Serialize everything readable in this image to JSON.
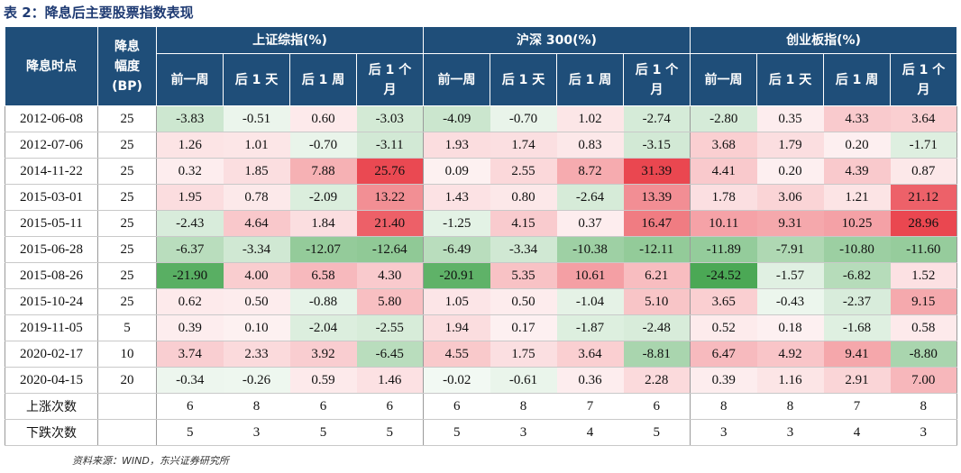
{
  "title": "表 2：降息后主要股票指数表现",
  "header": {
    "date_col": "降息时点",
    "bp_col": [
      "降息",
      "幅度",
      "(BP)"
    ],
    "groups": [
      "上证综指(%)",
      "沪深 300(%)",
      "创业板指(%)"
    ],
    "sub": [
      "前一周",
      "后 1 天",
      "后 1 周",
      "后 1 个",
      "月"
    ]
  },
  "rows": [
    {
      "date": "2012-06-08",
      "bp": "25",
      "sh": [
        "-3.83",
        "-0.51",
        "0.60",
        "-3.03"
      ],
      "hs": [
        "-4.09",
        "-0.70",
        "1.02",
        "-2.74"
      ],
      "cy": [
        "-2.80",
        "0.35",
        "4.33",
        "3.64"
      ]
    },
    {
      "date": "2012-07-06",
      "bp": "25",
      "sh": [
        "1.26",
        "1.01",
        "-0.70",
        "-3.11"
      ],
      "hs": [
        "1.93",
        "1.74",
        "0.83",
        "-3.15"
      ],
      "cy": [
        "3.68",
        "1.79",
        "0.20",
        "-1.71"
      ]
    },
    {
      "date": "2014-11-22",
      "bp": "25",
      "sh": [
        "0.32",
        "1.85",
        "7.88",
        "25.76"
      ],
      "hs": [
        "0.09",
        "2.55",
        "8.72",
        "31.39"
      ],
      "cy": [
        "4.41",
        "0.20",
        "4.39",
        "0.87"
      ]
    },
    {
      "date": "2015-03-01",
      "bp": "25",
      "sh": [
        "1.95",
        "0.78",
        "-2.09",
        "13.22"
      ],
      "hs": [
        "1.43",
        "0.80",
        "-2.64",
        "13.39"
      ],
      "cy": [
        "1.78",
        "3.06",
        "1.21",
        "21.12"
      ]
    },
    {
      "date": "2015-05-11",
      "bp": "25",
      "sh": [
        "-2.43",
        "4.64",
        "1.84",
        "21.40"
      ],
      "hs": [
        "-1.25",
        "4.15",
        "0.37",
        "16.47"
      ],
      "cy": [
        "10.11",
        "9.31",
        "10.25",
        "28.96"
      ]
    },
    {
      "date": "2015-06-28",
      "bp": "25",
      "sh": [
        "-6.37",
        "-3.34",
        "-12.07",
        "-12.64"
      ],
      "hs": [
        "-6.49",
        "-3.34",
        "-10.38",
        "-12.11"
      ],
      "cy": [
        "-11.89",
        "-7.91",
        "-10.80",
        "-11.60"
      ]
    },
    {
      "date": "2015-08-26",
      "bp": "25",
      "sh": [
        "-21.90",
        "4.00",
        "6.58",
        "4.30"
      ],
      "hs": [
        "-20.91",
        "5.35",
        "10.61",
        "6.21"
      ],
      "cy": [
        "-24.52",
        "-1.57",
        "-6.82",
        "1.52"
      ]
    },
    {
      "date": "2015-10-24",
      "bp": "25",
      "sh": [
        "0.62",
        "0.50",
        "-0.88",
        "5.80"
      ],
      "hs": [
        "1.05",
        "0.50",
        "-1.04",
        "5.10"
      ],
      "cy": [
        "3.65",
        "-0.43",
        "-2.37",
        "9.15"
      ]
    },
    {
      "date": "2019-11-05",
      "bp": "5",
      "sh": [
        "0.39",
        "0.10",
        "-2.04",
        "-2.55"
      ],
      "hs": [
        "1.94",
        "0.17",
        "-1.87",
        "-2.48"
      ],
      "cy": [
        "0.52",
        "0.18",
        "-1.68",
        "0.58"
      ]
    },
    {
      "date": "2020-02-17",
      "bp": "10",
      "sh": [
        "3.74",
        "2.33",
        "3.92",
        "-6.45"
      ],
      "hs": [
        "4.55",
        "1.75",
        "3.64",
        "-8.81"
      ],
      "cy": [
        "6.47",
        "4.92",
        "9.41",
        "-8.80"
      ]
    },
    {
      "date": "2020-04-15",
      "bp": "20",
      "sh": [
        "-0.34",
        "-0.26",
        "0.59",
        "1.46"
      ],
      "hs": [
        "-0.02",
        "-0.61",
        "0.36",
        "2.28"
      ],
      "cy": [
        "0.39",
        "1.16",
        "2.91",
        "7.00"
      ]
    }
  ],
  "counts": [
    {
      "label": "上涨次数",
      "values": [
        "6",
        "8",
        "6",
        "6",
        "6",
        "8",
        "7",
        "6",
        "8",
        "8",
        "7",
        "8"
      ]
    },
    {
      "label": "下跌次数",
      "values": [
        "5",
        "3",
        "5",
        "5",
        "5",
        "3",
        "4",
        "5",
        "3",
        "3",
        "4",
        "3"
      ]
    }
  ],
  "source": "资料来源：WIND，东兴证券研究所",
  "colors": {
    "header_bg": "#1f4e79",
    "positive": "#e8333d",
    "negative": "#2e9a3a"
  }
}
